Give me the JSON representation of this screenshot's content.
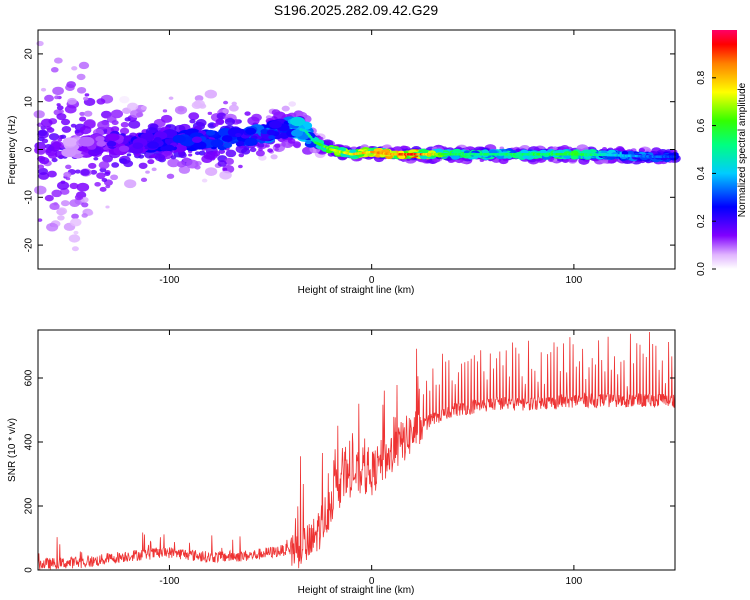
{
  "title": "S196.2025.282.09.42.G29",
  "chart_data": [
    {
      "type": "heatmap",
      "name": "spectrogram",
      "xlabel": "Height of straight line (km)",
      "ylabel": "Frequency (Hz)",
      "xlim": [
        -165,
        150
      ],
      "ylim": [
        -25,
        25
      ],
      "xticks": [
        -100,
        0,
        100
      ],
      "yticks": [
        -20,
        -10,
        0,
        10,
        20
      ],
      "colorbar": {
        "label": "Normalized spectral amplitude",
        "range": [
          0,
          1
        ],
        "ticks": [
          0.0,
          0.2,
          0.4,
          0.6,
          0.8
        ]
      },
      "ridge": {
        "x": [
          -150,
          -130,
          -110,
          -90,
          -70,
          -55,
          -45,
          -38,
          -33,
          -28,
          -20,
          -10,
          0,
          10,
          20,
          40,
          60,
          80,
          100,
          120,
          140,
          150
        ],
        "frequency_hz": [
          0.5,
          1.0,
          1.5,
          2.0,
          2.0,
          3.0,
          4.0,
          4.5,
          4.0,
          1.5,
          0,
          -1,
          -0.5,
          -1,
          -1,
          -1,
          -1,
          -1,
          -1,
          -1.2,
          -1.5,
          -1.5
        ],
        "amplitude": [
          0.1,
          0.2,
          0.25,
          0.28,
          0.3,
          0.32,
          0.38,
          0.42,
          0.45,
          0.55,
          0.65,
          0.75,
          0.78,
          0.85,
          0.92,
          0.55,
          0.52,
          0.55,
          0.58,
          0.42,
          0.32,
          0.3
        ]
      }
    },
    {
      "type": "line",
      "name": "snr",
      "xlabel": "Height of straight line (km)",
      "ylabel": "SNR (10 * v/v)",
      "xlim": [
        -165,
        150
      ],
      "ylim": [
        0,
        750
      ],
      "xticks": [
        -100,
        0,
        100
      ],
      "yticks": [
        0,
        200,
        400,
        600
      ],
      "color": "#ee3333",
      "baseline": {
        "x": [
          -165,
          -140,
          -120,
          -100,
          -80,
          -60,
          -45,
          -30,
          -22,
          -18,
          -10,
          0,
          5,
          10,
          15,
          20,
          25,
          30,
          40,
          60,
          80,
          100,
          120,
          150
        ],
        "y": [
          18,
          25,
          45,
          55,
          40,
          45,
          60,
          80,
          180,
          250,
          300,
          300,
          340,
          360,
          400,
          430,
          450,
          470,
          500,
          520,
          520,
          530,
          530,
          530
        ]
      }
    }
  ]
}
